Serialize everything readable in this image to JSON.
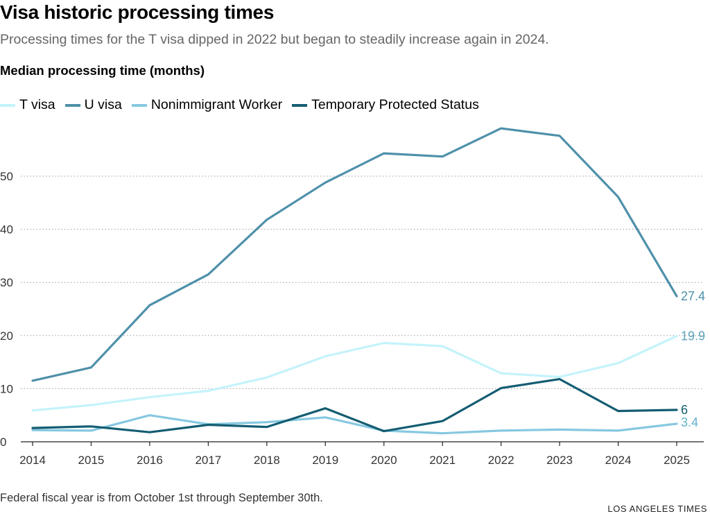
{
  "header": {
    "title": "Visa historic processing times",
    "subtitle": "Processing times for the T visa dipped in 2022 but began to steadily increase again in 2024.",
    "units": "Median processing time (months)"
  },
  "footer": {
    "note": "Federal fiscal year is from October 1st through September 30th.",
    "source": "LOS ANGELES TIMES"
  },
  "chart_data": {
    "type": "line",
    "title": "Visa historic processing times",
    "subtitle": "Processing times for the T visa dipped in 2022 but began to steadily increase again in 2024.",
    "ylabel": "Median processing time (months)",
    "xlabel": "",
    "x": [
      2014,
      2015,
      2016,
      2017,
      2018,
      2019,
      2020,
      2021,
      2022,
      2023,
      2024,
      2025
    ],
    "ylim": [
      0,
      60
    ],
    "yticks": [
      0,
      10,
      20,
      30,
      40,
      50
    ],
    "grid": "horizontal dotted",
    "legend_position": "top-left",
    "series": [
      {
        "name": "T visa",
        "color": "#c4f3fb",
        "values": [
          5.9,
          6.9,
          8.4,
          9.6,
          12.1,
          16.1,
          18.6,
          18.0,
          12.9,
          12.2,
          14.8,
          19.9
        ],
        "end_label": "19.9"
      },
      {
        "name": "U visa",
        "color": "#4e90aa",
        "values": [
          11.5,
          14.0,
          25.7,
          31.5,
          41.8,
          48.8,
          54.3,
          53.7,
          59.0,
          57.6,
          46.1,
          27.4
        ],
        "end_label": "27.4"
      },
      {
        "name": "Nonimmigrant Worker",
        "color": "#86c8e0",
        "values": [
          2.2,
          2.1,
          5.0,
          3.3,
          3.7,
          4.6,
          2.1,
          1.6,
          2.1,
          2.3,
          2.1,
          3.4
        ],
        "end_label": "3.4"
      },
      {
        "name": "Temporary Protected Status",
        "color": "#145d72",
        "values": [
          2.6,
          2.9,
          1.8,
          3.2,
          2.8,
          6.3,
          2.0,
          3.9,
          10.1,
          11.8,
          5.8,
          6.0
        ],
        "end_label": "6"
      }
    ]
  }
}
